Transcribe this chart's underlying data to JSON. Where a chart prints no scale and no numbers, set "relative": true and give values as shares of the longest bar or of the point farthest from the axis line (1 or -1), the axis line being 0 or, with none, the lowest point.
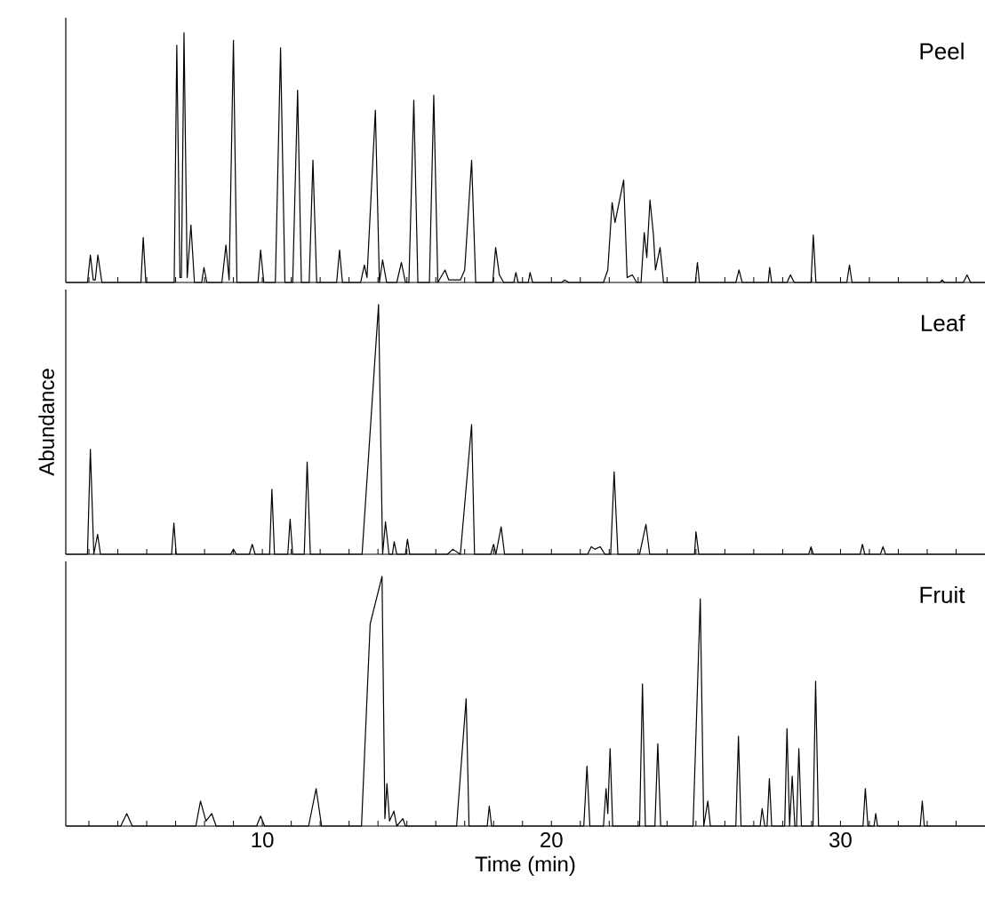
{
  "chart_data": [
    {
      "type": "line",
      "relative": true,
      "xlim": [
        3.2,
        35
      ],
      "tick_labels": false,
      "marker": "none",
      "xticks": [
        {
          "value": 4,
          "label": null
        },
        {
          "value": 5,
          "label": null
        },
        {
          "value": 6,
          "label": null
        },
        {
          "value": 7,
          "label": null
        },
        {
          "value": 8,
          "label": null
        },
        {
          "value": 9,
          "label": null
        },
        10,
        {
          "value": 11,
          "label": null
        },
        {
          "value": 12,
          "label": null
        },
        {
          "value": 13,
          "label": null
        },
        {
          "value": 14,
          "label": null
        },
        {
          "value": 15,
          "label": null
        },
        {
          "value": 16,
          "label": null
        },
        {
          "value": 17,
          "label": null
        },
        {
          "value": 18,
          "label": null
        },
        {
          "value": 19,
          "label": null
        },
        20,
        {
          "value": 21,
          "label": null
        },
        {
          "value": 22,
          "label": null
        },
        {
          "value": 23,
          "label": null
        },
        {
          "value": 24,
          "label": null
        },
        {
          "value": 25,
          "label": null
        },
        {
          "value": 26,
          "label": null
        },
        {
          "value": 27,
          "label": null
        },
        {
          "value": 28,
          "label": null
        },
        {
          "value": 29,
          "label": null
        },
        30,
        {
          "value": 31,
          "label": null
        },
        {
          "value": 32,
          "label": null
        },
        {
          "value": 33,
          "label": null
        },
        {
          "value": 34,
          "label": null
        }
      ],
      "series": [
        {
          "name": "Peel",
          "color": "#000000",
          "x": [
            3.2,
            3.95,
            4.05,
            4.15,
            4.22,
            4.31,
            4.45,
            5.8,
            5.88,
            5.97,
            6.95,
            7.04,
            7.15,
            7.2,
            7.29,
            7.4,
            7.53,
            7.65,
            7.9,
            7.98,
            8.08,
            8.6,
            8.74,
            8.85,
            9.0,
            9.12,
            9.85,
            9.94,
            10.05,
            10.45,
            10.63,
            10.78,
            11.05,
            11.22,
            11.35,
            11.62,
            11.75,
            11.88,
            12.57,
            12.67,
            12.77,
            13.4,
            13.53,
            13.62,
            13.91,
            14.05,
            14.16,
            14.3,
            14.65,
            14.81,
            14.95,
            15.07,
            15.24,
            15.38,
            15.78,
            15.93,
            16.07,
            16.32,
            16.45,
            16.85,
            17.0,
            17.24,
            17.38,
            17.97,
            18.07,
            18.2,
            18.35,
            18.7,
            18.77,
            18.85,
            19.2,
            19.26,
            19.35,
            20.35,
            20.46,
            20.6,
            21.8,
            21.95,
            22.1,
            22.2,
            22.5,
            22.62,
            22.8,
            22.95,
            23.1,
            23.21,
            23.3,
            23.41,
            23.53,
            23.6,
            23.76,
            23.88,
            24.98,
            25.05,
            25.12,
            26.38,
            26.49,
            26.6,
            27.5,
            27.55,
            27.62,
            28.15,
            28.27,
            28.4,
            28.98,
            29.06,
            29.15,
            30.22,
            30.31,
            30.4,
            33.45,
            33.51,
            33.6,
            34.25,
            34.38,
            34.5,
            35
          ],
          "values": [
            0,
            0,
            0.11,
            0.01,
            0.01,
            0.11,
            0,
            0,
            0.18,
            0,
            0,
            0.95,
            0.02,
            0.02,
            1.0,
            0.02,
            0.23,
            0,
            0,
            0.06,
            0,
            0,
            0.15,
            0.01,
            0.97,
            0,
            0,
            0.13,
            0,
            0,
            0.94,
            0,
            0,
            0.77,
            0,
            0,
            0.49,
            0,
            0,
            0.13,
            0,
            0,
            0.07,
            0.02,
            0.69,
            0,
            0.09,
            0,
            0,
            0.08,
            0,
            0,
            0.73,
            0,
            0,
            0.75,
            0,
            0.05,
            0.01,
            0.01,
            0.05,
            0.49,
            0,
            0,
            0.14,
            0.03,
            0,
            0,
            0.04,
            0,
            0,
            0.04,
            0,
            0,
            0.01,
            0,
            0,
            0.05,
            0.32,
            0.24,
            0.41,
            0.02,
            0.03,
            0,
            0,
            0.2,
            0.1,
            0.33,
            0.19,
            0.05,
            0.14,
            0,
            0,
            0.08,
            0,
            0,
            0.05,
            0,
            0,
            0.06,
            0,
            0,
            0.03,
            0,
            0,
            0.19,
            0,
            0,
            0.07,
            0,
            0,
            0.01,
            0,
            0,
            0.03,
            0,
            0
          ]
        }
      ]
    },
    {
      "type": "line",
      "relative": true,
      "xlim": [
        3.2,
        35
      ],
      "tick_labels": false,
      "marker": "none",
      "ylabel": "Abundance",
      "xticks": [
        {
          "value": 4,
          "label": null
        },
        {
          "value": 5,
          "label": null
        },
        {
          "value": 6,
          "label": null
        },
        {
          "value": 7,
          "label": null
        },
        {
          "value": 8,
          "label": null
        },
        {
          "value": 9,
          "label": null
        },
        10,
        {
          "value": 11,
          "label": null
        },
        {
          "value": 12,
          "label": null
        },
        {
          "value": 13,
          "label": null
        },
        {
          "value": 14,
          "label": null
        },
        {
          "value": 15,
          "label": null
        },
        {
          "value": 16,
          "label": null
        },
        {
          "value": 17,
          "label": null
        },
        {
          "value": 18,
          "label": null
        },
        {
          "value": 19,
          "label": null
        },
        20,
        {
          "value": 21,
          "label": null
        },
        {
          "value": 22,
          "label": null
        },
        {
          "value": 23,
          "label": null
        },
        {
          "value": 24,
          "label": null
        },
        {
          "value": 25,
          "label": null
        },
        {
          "value": 26,
          "label": null
        },
        {
          "value": 27,
          "label": null
        },
        {
          "value": 28,
          "label": null
        },
        {
          "value": 29,
          "label": null
        },
        30,
        {
          "value": 31,
          "label": null
        },
        {
          "value": 32,
          "label": null
        },
        {
          "value": 33,
          "label": null
        },
        {
          "value": 34,
          "label": null
        }
      ],
      "series": [
        {
          "name": "Leaf",
          "color": "#000000",
          "x": [
            3.2,
            3.95,
            4.05,
            4.17,
            4.3,
            4.4,
            6.86,
            6.94,
            7.02,
            8.9,
            9.0,
            9.1,
            9.55,
            9.65,
            9.75,
            10.25,
            10.33,
            10.42,
            10.88,
            10.96,
            11.05,
            11.45,
            11.55,
            11.66,
            13.45,
            14.02,
            14.16,
            14.26,
            14.38,
            14.5,
            14.56,
            14.65,
            14.95,
            15.02,
            15.1,
            16.4,
            16.59,
            16.85,
            17.24,
            17.34,
            17.9,
            18.0,
            18.08,
            18.26,
            18.38,
            21.25,
            21.38,
            21.5,
            21.69,
            21.85,
            22.05,
            22.17,
            22.3,
            23.05,
            23.27,
            23.4,
            24.95,
            25.0,
            25.1,
            28.9,
            28.98,
            29.06,
            30.68,
            30.76,
            30.84,
            31.38,
            31.47,
            31.56,
            35
          ],
          "values": [
            0,
            0,
            0.42,
            0,
            0.08,
            0,
            0,
            0.125,
            0,
            0,
            0.02,
            0,
            0,
            0.04,
            0,
            0,
            0.26,
            0,
            0,
            0.14,
            0,
            0,
            0.37,
            0,
            0,
            1.0,
            0,
            0.13,
            0,
            0,
            0.05,
            0,
            0,
            0.06,
            0,
            0,
            0.02,
            0,
            0.52,
            0,
            0,
            0.04,
            0,
            0.11,
            0,
            0,
            0.03,
            0.02,
            0.03,
            0,
            0,
            0.33,
            0,
            0,
            0.12,
            0,
            0,
            0.09,
            0,
            0,
            0.03,
            0,
            0,
            0.04,
            0,
            0,
            0.03,
            0,
            0
          ]
        }
      ]
    },
    {
      "type": "line",
      "relative": true,
      "xlim": [
        3.2,
        35
      ],
      "tick_labels": "x",
      "marker": "none",
      "xlabel": "Time (min)",
      "xticks": [
        {
          "value": 4,
          "label": null
        },
        {
          "value": 5,
          "label": null
        },
        {
          "value": 6,
          "label": null
        },
        {
          "value": 7,
          "label": null
        },
        {
          "value": 8,
          "label": null
        },
        {
          "value": 9,
          "label": null
        },
        10,
        {
          "value": 11,
          "label": null
        },
        {
          "value": 12,
          "label": null
        },
        {
          "value": 13,
          "label": null
        },
        {
          "value": 14,
          "label": null
        },
        {
          "value": 15,
          "label": null
        },
        {
          "value": 16,
          "label": null
        },
        {
          "value": 17,
          "label": null
        },
        {
          "value": 18,
          "label": null
        },
        {
          "value": 19,
          "label": null
        },
        20,
        {
          "value": 21,
          "label": null
        },
        {
          "value": 22,
          "label": null
        },
        {
          "value": 23,
          "label": null
        },
        {
          "value": 24,
          "label": null
        },
        {
          "value": 25,
          "label": null
        },
        {
          "value": 26,
          "label": null
        },
        {
          "value": 27,
          "label": null
        },
        {
          "value": 28,
          "label": null
        },
        {
          "value": 29,
          "label": null
        },
        30,
        {
          "value": 31,
          "label": null
        },
        {
          "value": 32,
          "label": null
        },
        {
          "value": 33,
          "label": null
        },
        {
          "value": 34,
          "label": null
        }
      ],
      "series": [
        {
          "name": "Fruit",
          "color": "#000000",
          "x": [
            3.2,
            5.1,
            5.31,
            5.5,
            7.7,
            7.86,
            8.05,
            8.25,
            8.4,
            9.8,
            9.94,
            10.08,
            11.6,
            11.86,
            12.05,
            13.43,
            13.73,
            14.14,
            14.24,
            14.31,
            14.4,
            14.55,
            14.65,
            14.86,
            14.95,
            16.72,
            17.05,
            17.15,
            17.78,
            17.85,
            17.93,
            21.12,
            21.23,
            21.33,
            21.8,
            21.89,
            21.95,
            22.03,
            22.12,
            23.05,
            23.15,
            23.25,
            23.58,
            23.68,
            23.78,
            24.9,
            25.15,
            25.27,
            25.41,
            25.5,
            26.38,
            26.47,
            26.56,
            27.22,
            27.29,
            27.38,
            27.46,
            27.54,
            27.62,
            28.07,
            28.15,
            28.24,
            28.33,
            28.42,
            28.48,
            28.56,
            28.65,
            29.05,
            29.14,
            29.24,
            30.78,
            30.86,
            30.95,
            31.16,
            31.22,
            31.28,
            32.76,
            32.83,
            32.9,
            35
          ],
          "values": [
            0,
            0,
            0.05,
            0,
            0,
            0.1,
            0.02,
            0.05,
            0,
            0,
            0.04,
            0,
            0,
            0.15,
            0,
            0,
            0.81,
            1.0,
            0.03,
            0.17,
            0.02,
            0.06,
            0,
            0.03,
            0,
            0,
            0.51,
            0,
            0,
            0.08,
            0,
            0,
            0.24,
            0,
            0,
            0.15,
            0.05,
            0.31,
            0,
            0,
            0.57,
            0,
            0,
            0.33,
            0,
            0,
            0.91,
            0,
            0.1,
            0,
            0,
            0.36,
            0,
            0,
            0.07,
            0,
            0,
            0.19,
            0,
            0,
            0.39,
            0,
            0.2,
            0,
            0,
            0.31,
            0,
            0,
            0.58,
            0,
            0,
            0.15,
            0,
            0,
            0.05,
            0,
            0,
            0.1,
            0,
            0
          ]
        }
      ]
    }
  ]
}
